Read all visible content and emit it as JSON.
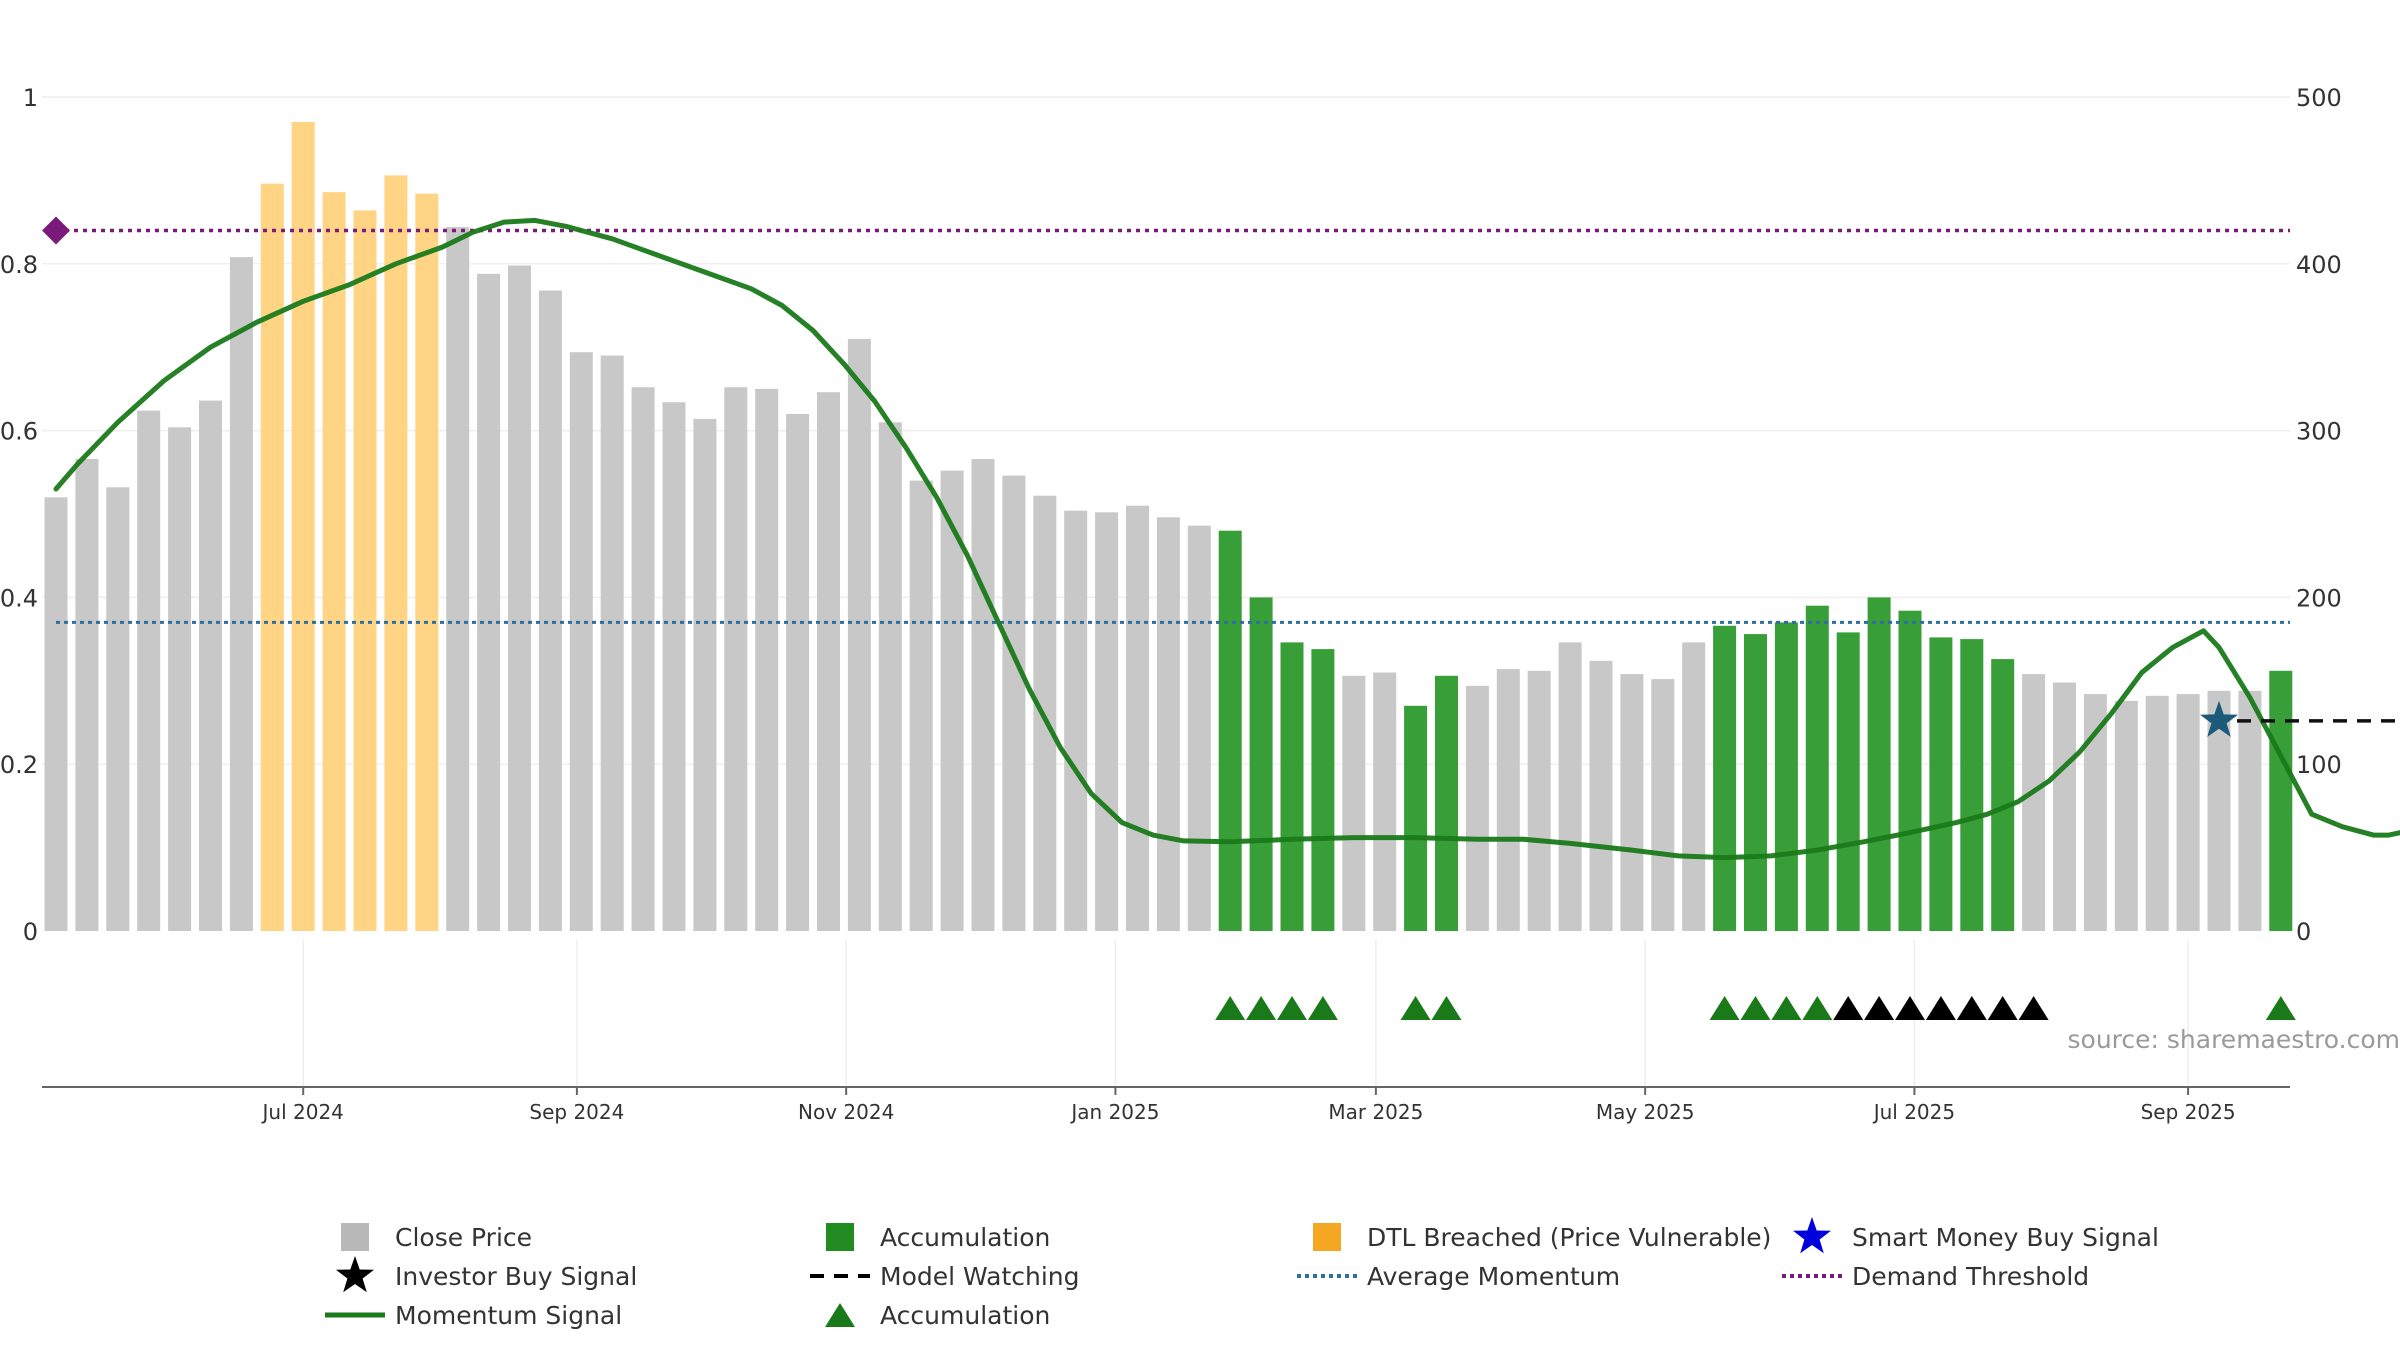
{
  "chart_data": {
    "type": "bar",
    "title": "",
    "xlabel": "",
    "ylabel": "",
    "source": "source: sharemaestro.com",
    "ylim_left": [
      0,
      1
    ],
    "ylim_right": [
      0,
      500
    ],
    "left_ticks": [
      "0",
      "0.2",
      "0.4",
      "0.6",
      "0.8",
      "1"
    ],
    "right_ticks": [
      "0",
      "100",
      "200",
      "300",
      "400",
      "500"
    ],
    "x_tick_labels": [
      "Jul 2024",
      "Sep 2024",
      "Nov 2024",
      "Jan 2025",
      "Mar 2025",
      "May 2025",
      "Jul 2025",
      "Sep 2025"
    ],
    "bar_start_date": "2024-05-06",
    "x_end_date": "2025-09-22",
    "bar_interval_days": 7,
    "grid": true,
    "legend_position": "bottom",
    "close_price": [
      260,
      283,
      266,
      312,
      302,
      318,
      404,
      448,
      485,
      443,
      432,
      453,
      442,
      422,
      394,
      399,
      384,
      347,
      345,
      326,
      317,
      307,
      326,
      325,
      310,
      323,
      355,
      305,
      270,
      276,
      283,
      273,
      261,
      252,
      251,
      255,
      248,
      243,
      240,
      200,
      173,
      169,
      153,
      155,
      135,
      153,
      147,
      157,
      156,
      173,
      162,
      154,
      151,
      173,
      183,
      178,
      185,
      195,
      179,
      200,
      192,
      176,
      175,
      163,
      154,
      149,
      142,
      138,
      141,
      142,
      144,
      144,
      156
    ],
    "bar_status": [
      "close",
      "close",
      "close",
      "close",
      "close",
      "close",
      "close",
      "dtl",
      "dtl",
      "dtl",
      "dtl",
      "dtl",
      "dtl",
      "close",
      "close",
      "close",
      "close",
      "close",
      "close",
      "close",
      "close",
      "close",
      "close",
      "close",
      "close",
      "close",
      "close",
      "close",
      "close",
      "close",
      "close",
      "close",
      "close",
      "close",
      "close",
      "close",
      "close",
      "close",
      "accum",
      "accum",
      "accum",
      "accum",
      "close",
      "close",
      "accum",
      "accum",
      "close",
      "close",
      "close",
      "close",
      "close",
      "close",
      "close",
      "close",
      "accum",
      "accum",
      "accum",
      "accum",
      "accum",
      "accum",
      "accum",
      "accum",
      "accum",
      "accum",
      "close",
      "close",
      "close",
      "close",
      "close",
      "close",
      "close",
      "close",
      "accum"
    ],
    "momentum_signal": [
      [
        0,
        0.53
      ],
      [
        0.7,
        0.56
      ],
      [
        2,
        0.61
      ],
      [
        3.5,
        0.66
      ],
      [
        5,
        0.7
      ],
      [
        6.5,
        0.73
      ],
      [
        8,
        0.755
      ],
      [
        9.5,
        0.775
      ],
      [
        11,
        0.8
      ],
      [
        12.5,
        0.82
      ],
      [
        13.5,
        0.838
      ],
      [
        14.5,
        0.85
      ],
      [
        15.5,
        0.852
      ],
      [
        16.5,
        0.845
      ],
      [
        18,
        0.83
      ],
      [
        19.5,
        0.81
      ],
      [
        21,
        0.79
      ],
      [
        22.5,
        0.77
      ],
      [
        23.5,
        0.75
      ],
      [
        24.5,
        0.72
      ],
      [
        25.5,
        0.68
      ],
      [
        26.5,
        0.635
      ],
      [
        27.5,
        0.58
      ],
      [
        28.5,
        0.52
      ],
      [
        29.5,
        0.45
      ],
      [
        30.5,
        0.37
      ],
      [
        31.5,
        0.29
      ],
      [
        32.5,
        0.22
      ],
      [
        33.5,
        0.165
      ],
      [
        34.5,
        0.13
      ],
      [
        35.5,
        0.115
      ],
      [
        36.5,
        0.108
      ],
      [
        38,
        0.107
      ],
      [
        40,
        0.11
      ],
      [
        42,
        0.112
      ],
      [
        44,
        0.112
      ],
      [
        46,
        0.11
      ],
      [
        47.5,
        0.11
      ],
      [
        49,
        0.105
      ],
      [
        51,
        0.097
      ],
      [
        52.5,
        0.09
      ],
      [
        54,
        0.088
      ],
      [
        55.5,
        0.09
      ],
      [
        57,
        0.097
      ],
      [
        58.5,
        0.107
      ],
      [
        60,
        0.118
      ],
      [
        61.5,
        0.13
      ],
      [
        62.5,
        0.14
      ],
      [
        63.5,
        0.155
      ],
      [
        64.5,
        0.18
      ],
      [
        65.5,
        0.215
      ],
      [
        66.5,
        0.26
      ],
      [
        67.5,
        0.31
      ],
      [
        68.5,
        0.34
      ],
      [
        69.5,
        0.36
      ],
      [
        70,
        0.34
      ],
      [
        71,
        0.28
      ],
      [
        72,
        0.21
      ],
      [
        73,
        0.14
      ],
      [
        74,
        0.125
      ],
      [
        75,
        0.115
      ],
      [
        75.5,
        0.115
      ],
      [
        76.5,
        0.123
      ]
    ],
    "average_momentum": 0.37,
    "demand_threshold": 0.84,
    "demand_marker_x": 0,
    "smart_money_buy_signal": {
      "x": 70,
      "y": 0.252
    },
    "model_watching": {
      "x_start": 70,
      "x_end": 76.7,
      "y": 0.252
    },
    "accumulation_triangles": [
      38,
      39,
      40,
      41,
      44,
      45,
      54,
      55,
      56,
      57,
      72
    ],
    "investor_buy_signals": [
      58,
      59,
      60,
      61,
      62,
      63,
      64
    ],
    "colors": {
      "close": "#c8c8c8",
      "accum": "#389e38",
      "dtl": "#ffd485",
      "momentum": "#1a7a1a",
      "average": "#2f6f9f",
      "demand": "#7a1a7a",
      "smart_money": "#0000dd",
      "triangle_green": "#1a7a1a",
      "triangle_black": "#000000"
    }
  },
  "legend": [
    {
      "label": "Close Price",
      "marker": "square",
      "color": "#b9b9b9"
    },
    {
      "label": "Accumulation",
      "marker": "square",
      "color": "#228b22"
    },
    {
      "label": "DTL Breached (Price Vulnerable)",
      "marker": "square",
      "color": "#f5a623"
    },
    {
      "label": "Smart Money Buy Signal",
      "marker": "star",
      "color": "#0000dd"
    },
    {
      "label": "Investor Buy Signal",
      "marker": "star",
      "color": "#000000"
    },
    {
      "label": "Model Watching",
      "marker": "dash",
      "color": "#000000"
    },
    {
      "label": "Average Momentum",
      "marker": "dotted",
      "color": "#2f6f9f"
    },
    {
      "label": "Demand Threshold",
      "marker": "dotted",
      "color": "#7a1a7a"
    },
    {
      "label": "Momentum Signal",
      "marker": "line",
      "color": "#1a7a1a"
    },
    {
      "label": "Accumulation",
      "marker": "triangle",
      "color": "#1a7a1a"
    }
  ]
}
